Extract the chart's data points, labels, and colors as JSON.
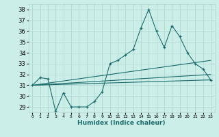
{
  "xlabel": "Humidex (Indice chaleur)",
  "ylabel": "",
  "xlim": [
    -0.5,
    23.5
  ],
  "ylim": [
    28.5,
    38.5
  ],
  "yticks": [
    29,
    30,
    31,
    32,
    33,
    34,
    35,
    36,
    37,
    38
  ],
  "xticks": [
    0,
    1,
    2,
    3,
    4,
    5,
    6,
    7,
    8,
    9,
    10,
    11,
    12,
    13,
    14,
    15,
    16,
    17,
    18,
    19,
    20,
    21,
    22,
    23
  ],
  "bg_color": "#cceee8",
  "grid_color": "#b0d8d0",
  "line_color": "#1a6b6b",
  "line1_x": [
    0,
    1,
    2,
    3,
    4,
    5,
    6,
    7,
    8,
    9,
    10,
    11,
    12,
    13,
    14,
    15,
    16,
    17,
    18,
    19,
    20,
    21,
    22,
    23
  ],
  "line1_y": [
    31.0,
    31.7,
    31.6,
    28.6,
    30.3,
    29.0,
    29.0,
    29.0,
    29.5,
    30.4,
    33.0,
    33.3,
    33.8,
    34.3,
    36.3,
    38.0,
    36.0,
    34.5,
    36.5,
    35.5,
    34.0,
    33.0,
    32.5,
    31.5
  ],
  "line2_x": [
    0,
    23
  ],
  "line2_y": [
    31.0,
    32.0
  ],
  "line3_x": [
    0,
    23
  ],
  "line3_y": [
    31.0,
    33.3
  ],
  "line4_x": [
    0,
    23
  ],
  "line4_y": [
    31.0,
    31.5
  ]
}
